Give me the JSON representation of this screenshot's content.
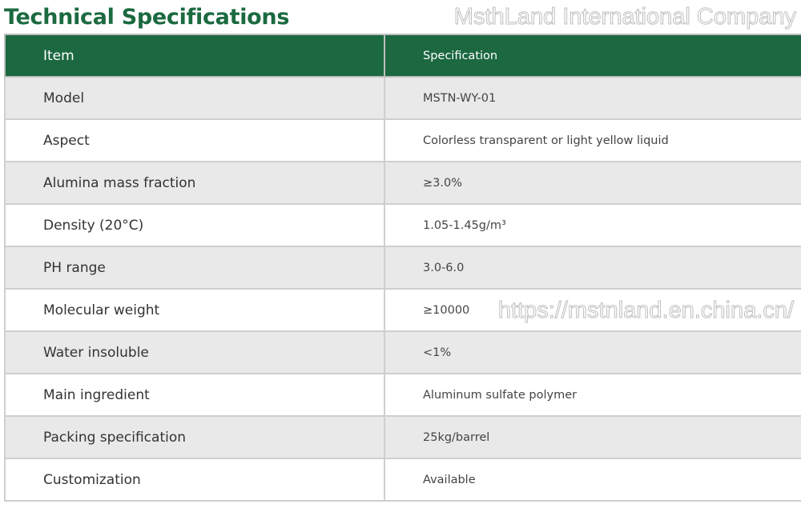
{
  "title": "Technical Specifications",
  "table": {
    "headers": [
      "Item",
      "Specification"
    ],
    "rows": [
      [
        "Model",
        "MSTN-WY-01"
      ],
      [
        "Aspect",
        "Colorless transparent or light yellow liquid"
      ],
      [
        "Alumina mass fraction",
        "≥3.0%"
      ],
      [
        "Density (20°C)",
        "1.05-1.45g/m³"
      ],
      [
        "PH range",
        "3.0-6.0"
      ],
      [
        "Molecular weight",
        "≥10000"
      ],
      [
        "Water insoluble",
        "<1%"
      ],
      [
        "Main ingredient",
        "Aluminum sulfate polymer"
      ],
      [
        "Packing specification",
        "25kg/barrel"
      ],
      [
        "Customization",
        "Available"
      ]
    ]
  },
  "watermark": {
    "company": "MsthLand International Company",
    "url": "https://mstnland.en.china.cn/"
  },
  "colors": {
    "header_bg": "#1b6841",
    "title": "#1b6a40",
    "row_alt": "#e9e9e9"
  }
}
